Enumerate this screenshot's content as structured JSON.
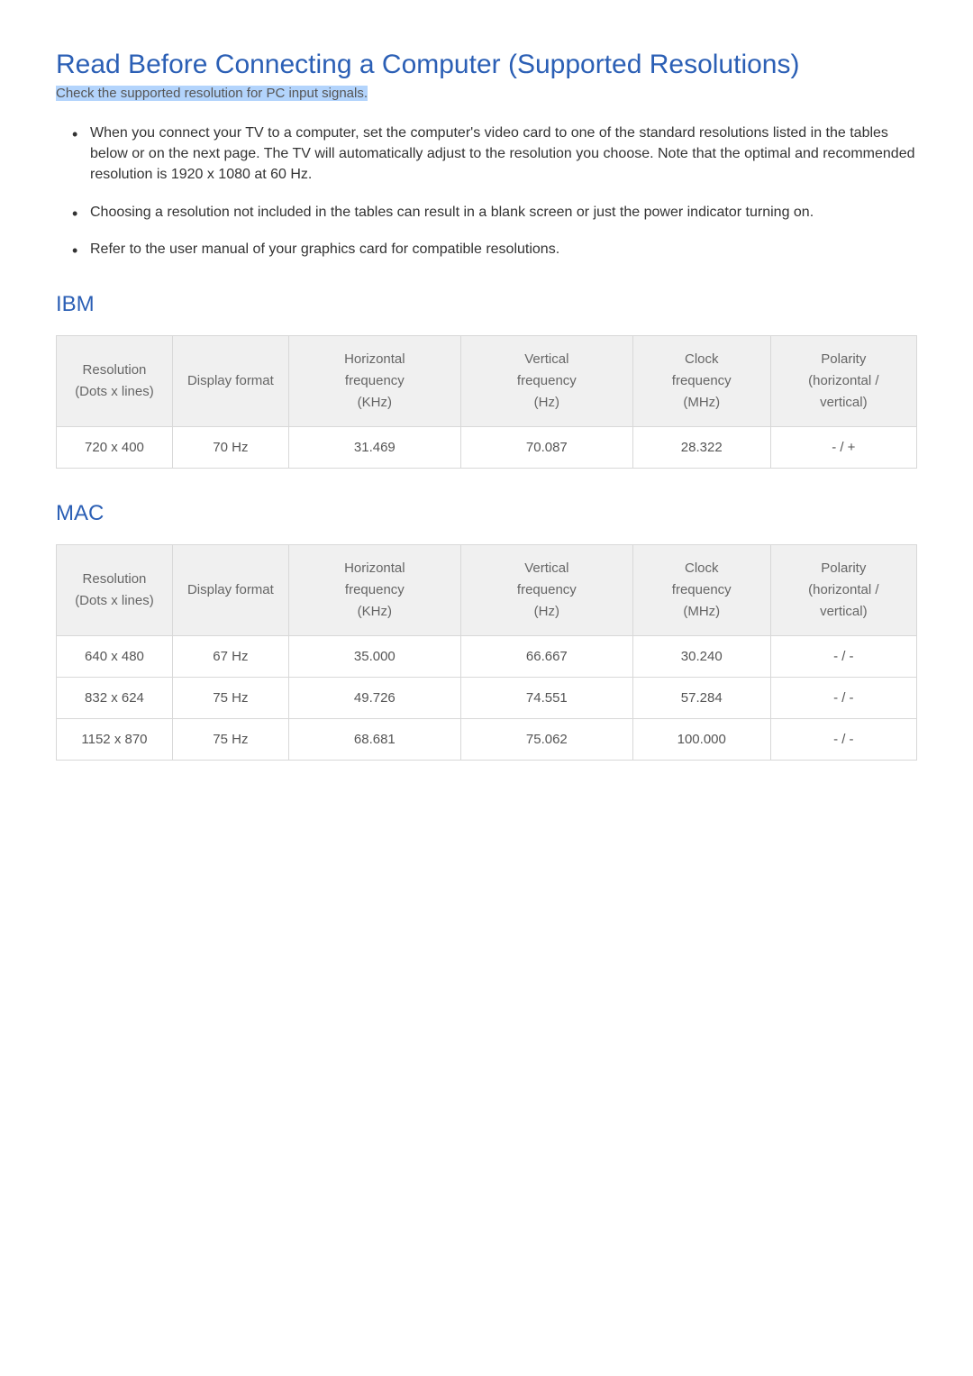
{
  "title": "Read Before Connecting a Computer (Supported Resolutions)",
  "subtitle_highlight": "Check the supported resolution for PC input signals.",
  "bullets": [
    "When you connect your TV to a computer, set the computer's video card to one of the standard resolutions listed in the tables below or on the next page. The TV will automatically adjust to the resolution you choose. Note that the optimal and recommended resolution is 1920 x 1080 at 60 Hz.",
    "Choosing a resolution not included in the tables can result in a blank screen or just the power indicator turning on.",
    "Refer to the user manual of your graphics card for compatible resolutions."
  ],
  "sections": [
    {
      "heading": "IBM",
      "columns": [
        "Resolution\n(Dots x lines)",
        "Display format",
        "Horizontal\nfrequency\n(KHz)",
        "Vertical\nfrequency\n(Hz)",
        "Clock\nfrequency\n(MHz)",
        "Polarity\n(horizontal /\nvertical)"
      ],
      "rows": [
        [
          "720 x 400",
          "70 Hz",
          "31.469",
          "70.087",
          "28.322",
          "- / +"
        ]
      ]
    },
    {
      "heading": "MAC",
      "columns": [
        "Resolution\n(Dots x lines)",
        "Display format",
        "Horizontal\nfrequency\n(KHz)",
        "Vertical\nfrequency\n(Hz)",
        "Clock\nfrequency\n(MHz)",
        "Polarity\n(horizontal /\nvertical)"
      ],
      "rows": [
        [
          "640 x 480",
          "67 Hz",
          "35.000",
          "66.667",
          "30.240",
          "- / -"
        ],
        [
          "832 x 624",
          "75 Hz",
          "49.726",
          "74.551",
          "57.284",
          "- / -"
        ],
        [
          "1152 x 870",
          "75 Hz",
          "68.681",
          "75.062",
          "100.000",
          "- / -"
        ]
      ]
    }
  ],
  "colors": {
    "heading_blue": "#2b5fb5",
    "text_dark": "#333333",
    "text_gray": "#555555",
    "text_th": "#666666",
    "th_bg": "#f0f0f0",
    "border": "#d8d8d8",
    "highlight_bg": "#b3d4fc",
    "bg": "#ffffff"
  }
}
